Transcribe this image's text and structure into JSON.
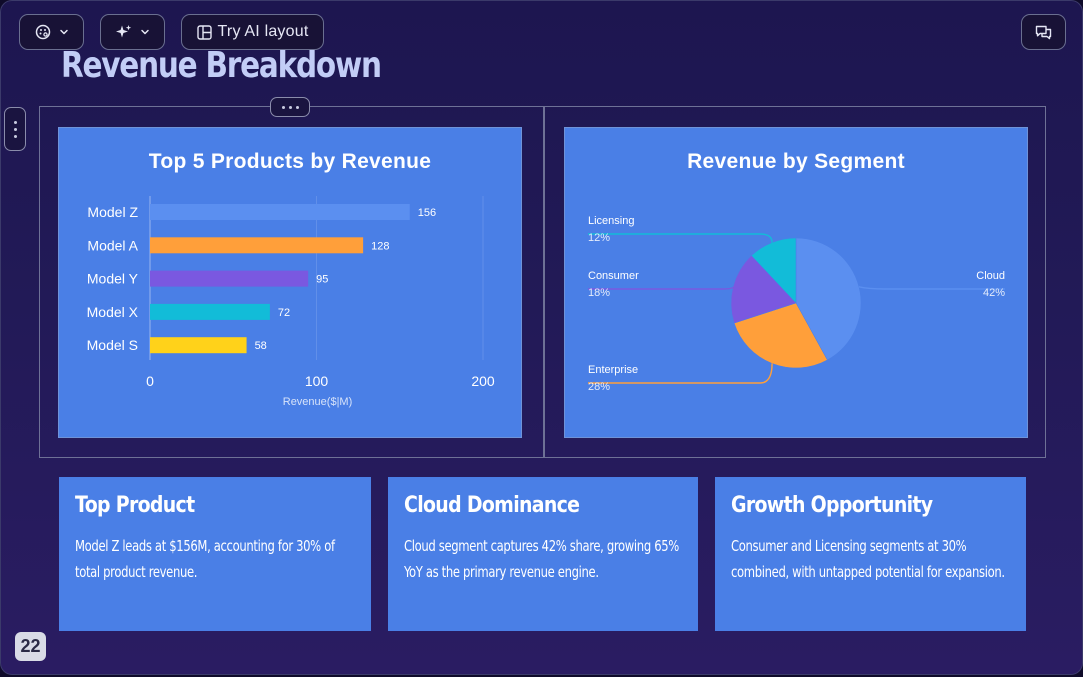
{
  "toolbar": {
    "theme_icon": "palette-icon",
    "magic_icon": "sparkles-icon",
    "ai_layout_icon": "layout-icon",
    "ai_layout_label": "Try AI layout",
    "comments_icon": "comments-icon"
  },
  "slide": {
    "title": "Revenue Breakdown",
    "page_number": "22"
  },
  "colors": {
    "background": "#211a57",
    "card": "#4a7fe6",
    "title": "#c2cdf6",
    "series": [
      "#5b8ff0",
      "#ff9f3a",
      "#7a58e0",
      "#12bcd8",
      "#ffd21a"
    ]
  },
  "chart_data": [
    {
      "type": "bar",
      "orientation": "horizontal",
      "title": "Top 5 Products by Revenue",
      "categories": [
        "Model Z",
        "Model A",
        "Model Y",
        "Model X",
        "Model S"
      ],
      "values": [
        156,
        128,
        95,
        72,
        58
      ],
      "xlabel": "Revenue($|M)",
      "xlim": [
        0,
        200
      ],
      "xticks": [
        "0",
        "100",
        "200"
      ],
      "grid": true,
      "data_labels": [
        "156",
        "128",
        "95",
        "72",
        "58"
      ]
    },
    {
      "type": "pie",
      "title": "Revenue by Segment",
      "slices": [
        {
          "name": "Cloud",
          "value": 42,
          "label": "42%"
        },
        {
          "name": "Enterprise",
          "value": 28,
          "label": "28%"
        },
        {
          "name": "Consumer",
          "value": 18,
          "label": "18%"
        },
        {
          "name": "Licensing",
          "value": 12,
          "label": "12%"
        }
      ]
    }
  ],
  "insights": [
    {
      "title": "Top Product",
      "body": "Model Z leads at $156M, accounting for 30% of total product revenue."
    },
    {
      "title": "Cloud Dominance",
      "body": "Cloud segment captures 42% share, growing 65% YoY as the primary revenue engine."
    },
    {
      "title": "Growth Opportunity",
      "body": "Consumer and Licensing segments at 30% combined, with untapped potential for expansion."
    }
  ]
}
